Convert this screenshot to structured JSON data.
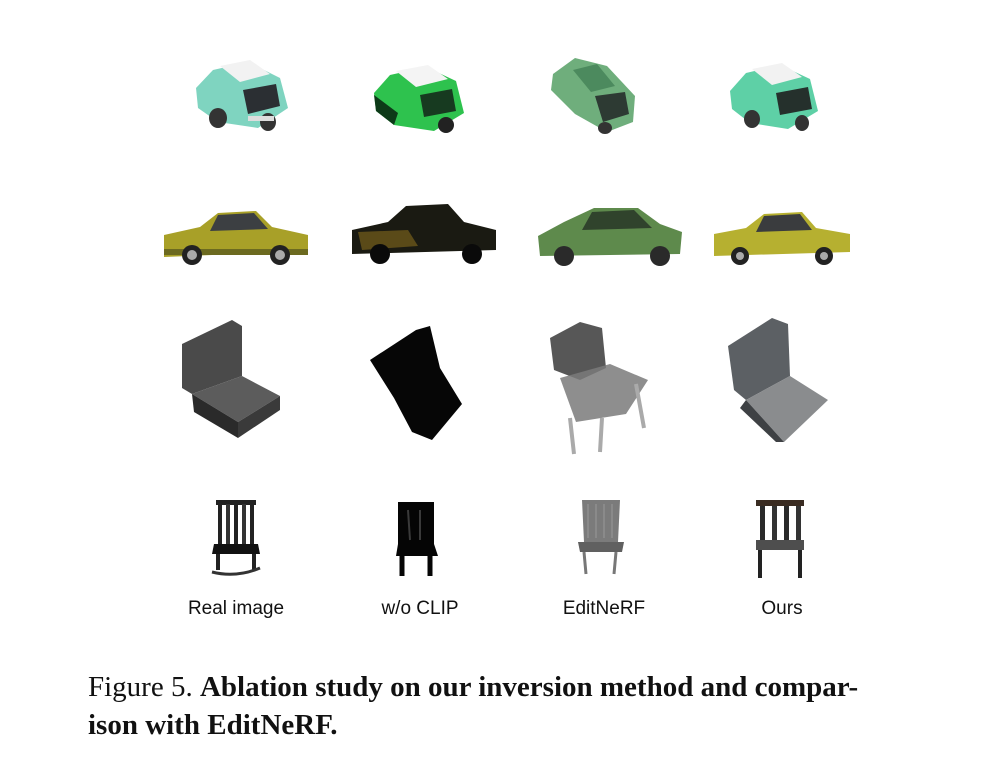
{
  "figure": {
    "columns": [
      "Real image",
      "w/o CLIP",
      "EditNeRF",
      "Ours"
    ],
    "rows": [
      {
        "object": "hatchback car",
        "cells": [
          "teal-hatchback",
          "green-hatchback",
          "green-hatchback-blurry",
          "teal-hatchback"
        ]
      },
      {
        "object": "muscle car",
        "cells": [
          "olive-muscle-car",
          "dark-muscle-car",
          "green-sedan-blurry",
          "olive-muscle-car"
        ]
      },
      {
        "object": "lounge chair",
        "cells": [
          "dark-grey-chair",
          "black-chair-silhouette",
          "grey-chair-blurry",
          "grey-chair"
        ]
      },
      {
        "object": "rocking chair",
        "cells": [
          "black-rocking-chair",
          "black-chair-silhouette",
          "grey-chair-blurry",
          "dark-chair"
        ]
      }
    ]
  },
  "caption": {
    "prefix": "Figure 5.",
    "title": "Ablation study on our inversion method and compar-ison with EditNeRF.",
    "line1": "Ablation study on our inversion method and compar-",
    "line2": "ison with EditNeRF."
  }
}
